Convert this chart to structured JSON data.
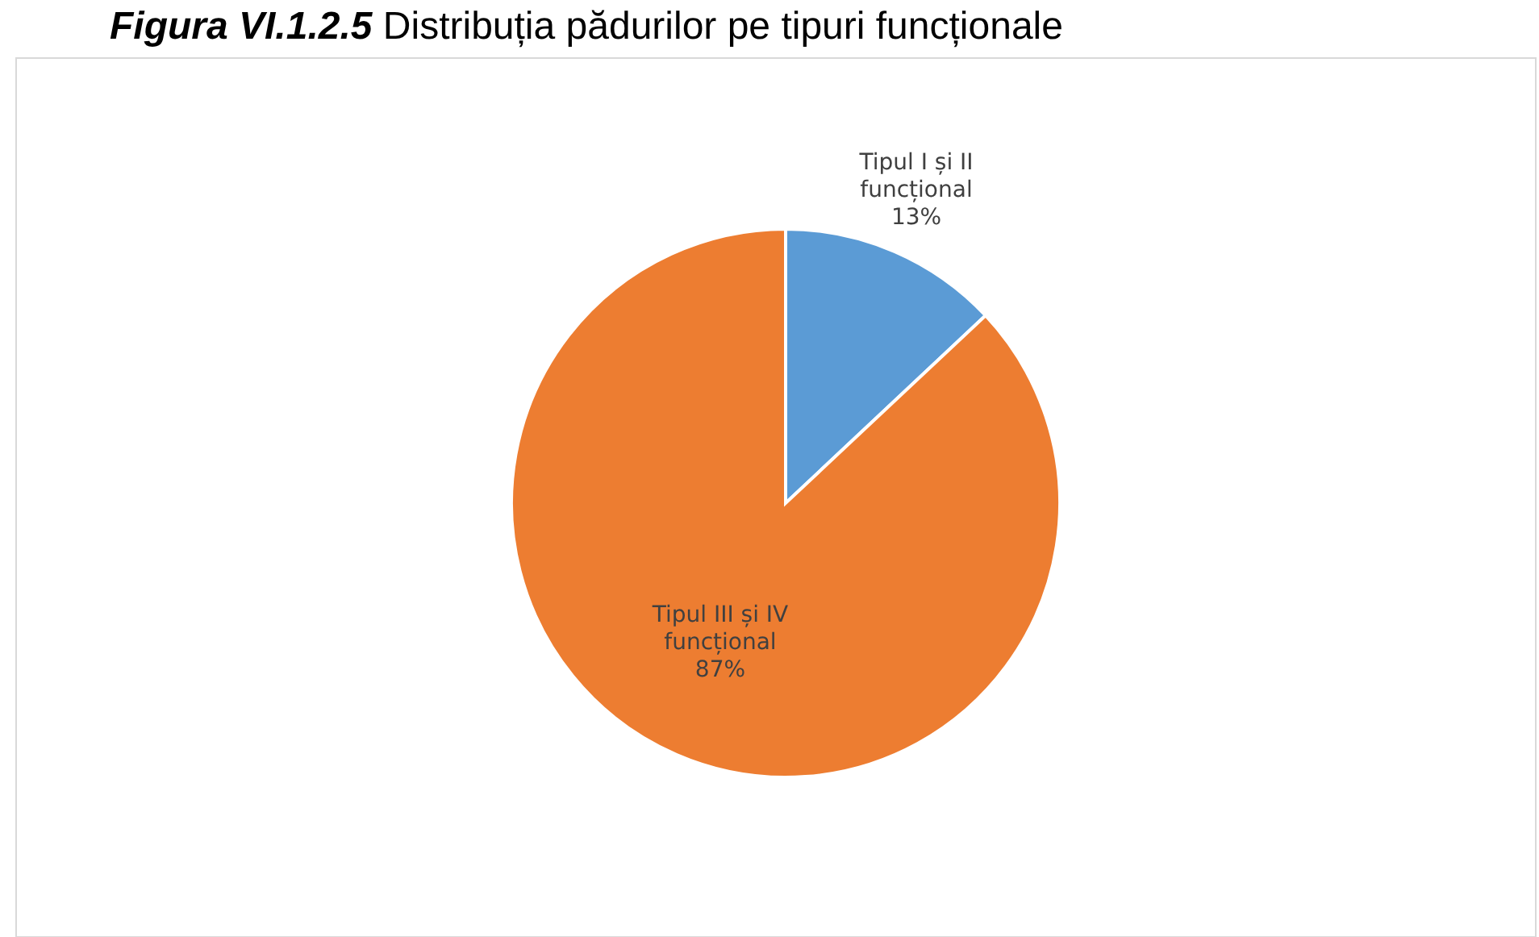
{
  "chart_data": {
    "type": "pie",
    "title": "Figura VI.1.2.5 Distribuția pădurilor pe tipuri funcționale",
    "categories": [
      "Tipul I și II funcțional",
      "Tipul III și IV funcțional"
    ],
    "values": [
      13,
      87
    ],
    "colors": [
      "#5b9bd5",
      "#ed7d31"
    ],
    "value_labels": [
      "13%",
      "87%"
    ]
  }
}
